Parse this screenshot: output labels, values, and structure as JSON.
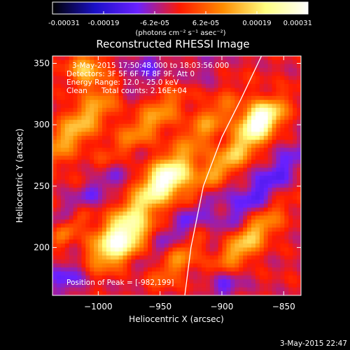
{
  "chart_data": {
    "type": "heatmap",
    "title": "Reconstructed RHESSI Image",
    "xlabel": "Heliocentric X (arcsec)",
    "ylabel": "Heliocentric Y (arcsec)",
    "xlim": [
      -1037,
      -836
    ],
    "ylim": [
      161,
      356
    ],
    "x_ticks": [
      -1000,
      -950,
      -900,
      -850
    ],
    "y_ticks": [
      200,
      250,
      300,
      350
    ],
    "x_tick_labels": [
      "−1000",
      "−950",
      "−900",
      "−850"
    ],
    "y_tick_labels": [
      "200",
      "250",
      "300",
      "350"
    ],
    "colorbar": {
      "range": [
        -0.00031,
        0.00031
      ],
      "tick_labels": [
        "-0.00031",
        "-0.00019",
        "-6.2e-05",
        "6.2e-05",
        "0.00019",
        "0.00031"
      ],
      "units": "(photons cm⁻² s⁻¹ asec⁻²)",
      "colormap": [
        "#000000",
        "#1a10c8",
        "#6a20ff",
        "#ff1a00",
        "#ff8c00",
        "#ffff80",
        "#ffffff"
      ]
    },
    "annotations": [
      "3-May-2015 17:50:48.000 to 18:03:56.000",
      "Detectors: 3F 5F 6F 7F 8F 9F, Att 0",
      "Energy Range: 12.0 - 25.0 keV",
      "Clean",
      "Total counts: 2.16E+04"
    ],
    "peak_label": "Position of Peak = [-982,199]",
    "peak_position": [
      -982,
      199
    ],
    "limb_curve": [
      [
        -930,
        161
      ],
      [
        -925,
        200
      ],
      [
        -915,
        250
      ],
      [
        -900,
        290
      ],
      [
        -885,
        320
      ],
      [
        -868,
        356
      ]
    ],
    "bright_features": [
      {
        "x": -982,
        "y": 205,
        "sx": 10,
        "sy": 18,
        "angle": 40,
        "amp": 1.0
      },
      {
        "x": -960,
        "y": 240,
        "sx": 8,
        "sy": 30,
        "angle": 40,
        "amp": 0.55
      },
      {
        "x": -945,
        "y": 258,
        "sx": 10,
        "sy": 14,
        "angle": 35,
        "amp": 0.7
      },
      {
        "x": -958,
        "y": 300,
        "sx": 9,
        "sy": 40,
        "angle": 45,
        "amp": 0.55
      },
      {
        "x": -1015,
        "y": 300,
        "sx": 9,
        "sy": 35,
        "angle": 45,
        "amp": 0.55
      },
      {
        "x": -1010,
        "y": 345,
        "sx": 10,
        "sy": 10,
        "angle": 40,
        "amp": 0.55
      },
      {
        "x": -870,
        "y": 305,
        "sx": 8,
        "sy": 12,
        "angle": 40,
        "amp": 0.95
      },
      {
        "x": -890,
        "y": 275,
        "sx": 8,
        "sy": 35,
        "angle": 45,
        "amp": 0.6
      },
      {
        "x": -880,
        "y": 205,
        "sx": 8,
        "sy": 25,
        "angle": 45,
        "amp": 0.6
      },
      {
        "x": -912,
        "y": 300,
        "sx": 8,
        "sy": 25,
        "angle": 45,
        "amp": 0.4
      },
      {
        "x": -1025,
        "y": 215,
        "sx": 6,
        "sy": 18,
        "angle": 45,
        "amp": 0.4
      },
      {
        "x": -935,
        "y": 190,
        "sx": 8,
        "sy": 20,
        "angle": 45,
        "amp": 0.4
      }
    ],
    "dark_features": [
      {
        "x": -995,
        "y": 255,
        "sx": 8,
        "sy": 45,
        "angle": 45,
        "amp": 0.7
      },
      {
        "x": -1025,
        "y": 175,
        "sx": 10,
        "sy": 12,
        "angle": 45,
        "amp": 0.6
      },
      {
        "x": -925,
        "y": 225,
        "sx": 8,
        "sy": 35,
        "angle": 45,
        "amp": 0.6
      },
      {
        "x": -965,
        "y": 345,
        "sx": 10,
        "sy": 20,
        "angle": 45,
        "amp": 0.6
      },
      {
        "x": -920,
        "y": 340,
        "sx": 9,
        "sy": 20,
        "angle": 45,
        "amp": 0.6
      },
      {
        "x": -865,
        "y": 250,
        "sx": 8,
        "sy": 40,
        "angle": 45,
        "amp": 0.7
      },
      {
        "x": -900,
        "y": 170,
        "sx": 10,
        "sy": 12,
        "angle": 45,
        "amp": 0.6
      }
    ]
  },
  "footer": {
    "timestamp": "3-May-2015 22:47"
  }
}
